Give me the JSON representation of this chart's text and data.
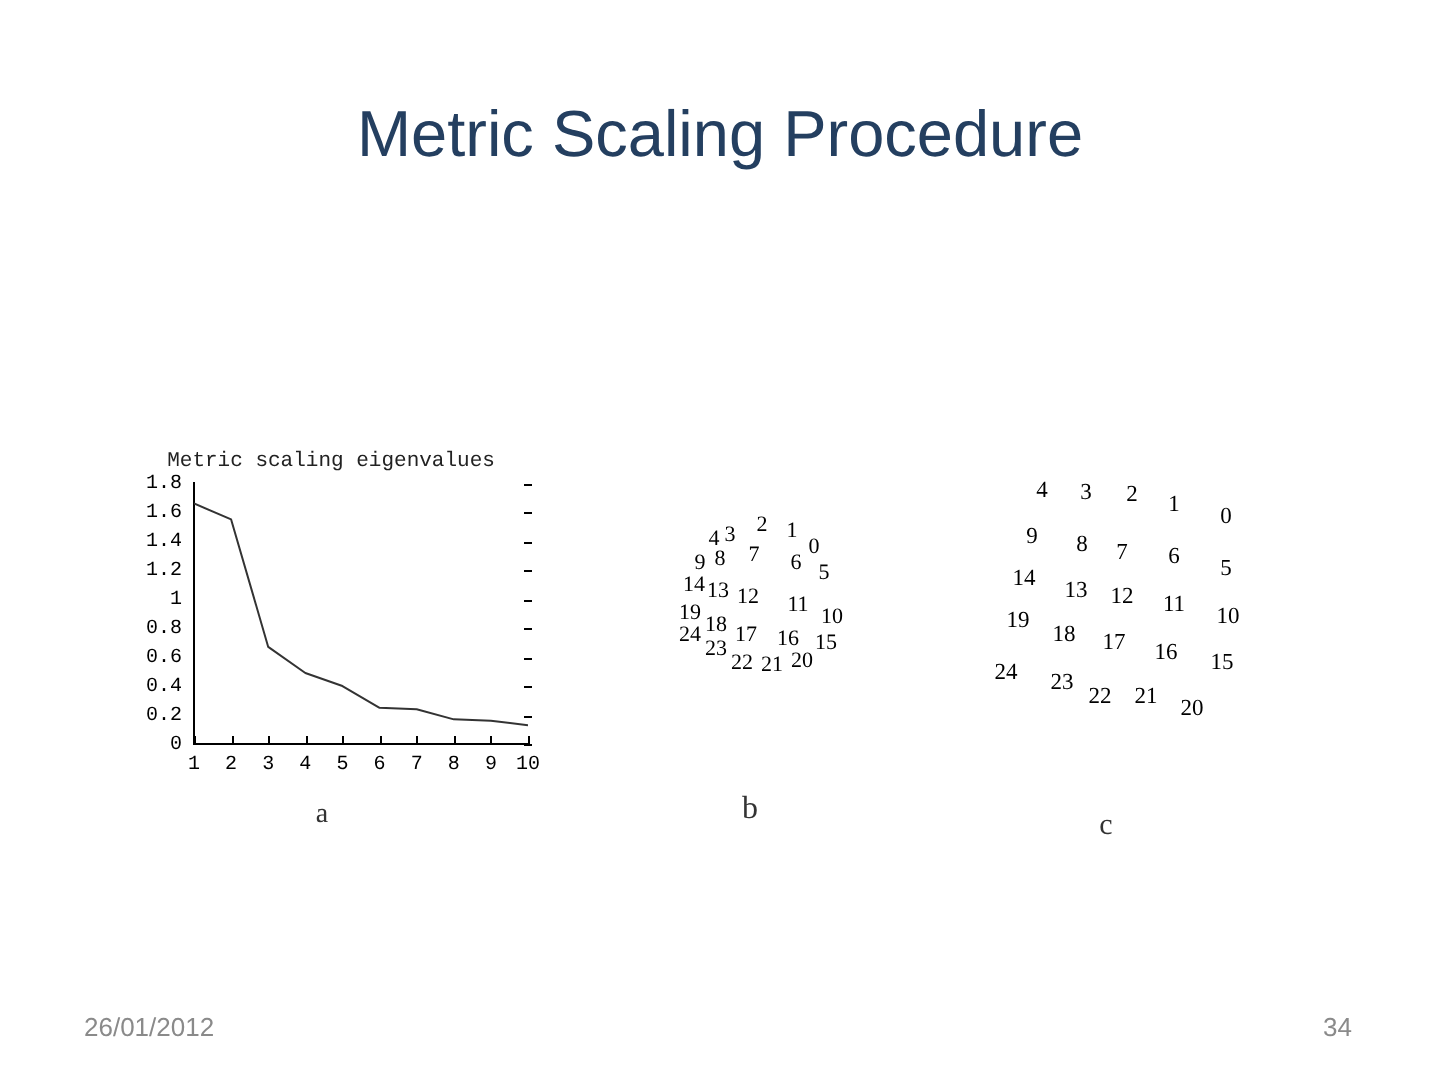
{
  "chart_data": [
    {
      "type": "other",
      "title": "Metric Scaling Procedure",
      "annotations": [
        "26/01/2012",
        "34"
      ]
    },
    {
      "type": "line",
      "title": "Metric scaling eigenvalues",
      "xlabel": "a",
      "x": [
        1,
        2,
        3,
        4,
        5,
        6,
        7,
        8,
        9,
        10
      ],
      "values": [
        1.66,
        1.55,
        0.67,
        0.49,
        0.4,
        0.25,
        0.24,
        0.17,
        0.16,
        0.13
      ],
      "color": "#333333",
      "xlim": [
        1,
        10
      ],
      "xticks": [
        1,
        2,
        3,
        4,
        5,
        6,
        7,
        8,
        9,
        10
      ],
      "ylim": [
        0,
        1.8
      ],
      "yticks": [
        0,
        0.2,
        0.4,
        0.6,
        0.8,
        1,
        1.2,
        1.4,
        1.6,
        1.8
      ],
      "marker": "none"
    },
    {
      "type": "other",
      "xlabel": "b",
      "categories": [
        "0",
        "1",
        "2",
        "3",
        "4",
        "5",
        "6",
        "7",
        "8",
        "9",
        "10",
        "11",
        "12",
        "13",
        "14",
        "15",
        "16",
        "17",
        "18",
        "19",
        "20",
        "21",
        "22",
        "23",
        "24"
      ]
    },
    {
      "type": "other",
      "xlabel": "c",
      "categories": [
        "0",
        "1",
        "2",
        "3",
        "4",
        "5",
        "6",
        "7",
        "8",
        "9",
        "10",
        "11",
        "12",
        "13",
        "14",
        "15",
        "16",
        "17",
        "18",
        "19",
        "20",
        "21",
        "22",
        "23",
        "24"
      ]
    }
  ]
}
